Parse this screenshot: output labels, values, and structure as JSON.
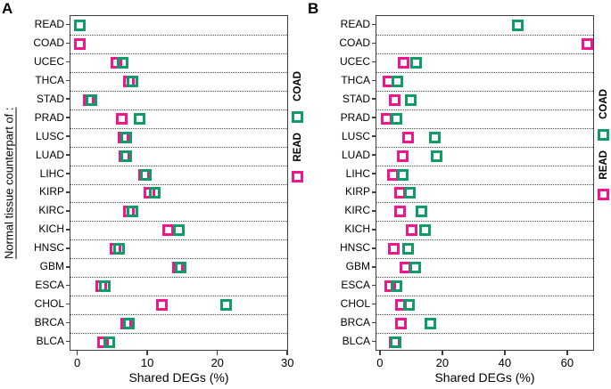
{
  "ylabel": "Normal tissue counterpart of :",
  "chart_data": {
    "type": "scatter",
    "marker": "open-square",
    "orientation": "horizontal-categories",
    "grid": "dotted-row-separators",
    "categories": [
      "READ",
      "COAD",
      "UCEC",
      "THCA",
      "STAD",
      "PRAD",
      "LUSC",
      "LUAD",
      "LIHC",
      "KIRP",
      "KIRC",
      "KICH",
      "HNSC",
      "GBM",
      "ESCA",
      "CHOL",
      "BRCA",
      "BLCA"
    ],
    "panels": [
      {
        "letter": "A",
        "xlabel": "Shared DEGs (%)",
        "xlim": [
          -1.1,
          30.1
        ],
        "xticks": [
          0,
          10,
          20,
          30
        ],
        "series": [
          {
            "name": "READ",
            "color": "#f2168d",
            "values": [
              null,
              0.2,
              5.4,
              7.2,
              1.5,
              6.2,
              6.5,
              6.6,
              9.4,
              10.2,
              7.3,
              12.9,
              5.3,
              14.2,
              3.3,
              11.9,
              6.8,
              3.6
            ]
          },
          {
            "name": "COAD",
            "color": "#0f9c66",
            "values": [
              0.3,
              null,
              6.4,
              7.8,
              1.9,
              8.8,
              6.8,
              6.9,
              9.7,
              10.9,
              7.7,
              14.4,
              5.9,
              14.6,
              3.8,
              21.1,
              7.3,
              4.4
            ]
          }
        ],
        "legend": [
          {
            "label": "COAD",
            "color": "#0f9c66"
          },
          {
            "label": "READ",
            "color": "#f2168d"
          }
        ]
      },
      {
        "letter": "B",
        "xlabel": "Shared DEGs (%)",
        "xlim": [
          -1.4,
          68.6
        ],
        "xticks": [
          0,
          20,
          40,
          60
        ],
        "series": [
          {
            "name": "READ",
            "color": "#f2168d",
            "values": [
              null,
              66.1,
              7.4,
              2.5,
              4.5,
              1.9,
              8.8,
              6.9,
              3.9,
              6.3,
              6.3,
              9.8,
              4.1,
              7.9,
              2.9,
              6.5,
              6.5,
              4.4
            ]
          },
          {
            "name": "COAD",
            "color": "#0f9c66",
            "values": [
              43.8,
              null,
              11.4,
              5.2,
              9.5,
              5.1,
              17.3,
              18.0,
              6.9,
              9.3,
              12.9,
              14.1,
              8.7,
              11.1,
              4.9,
              8.9,
              16.0,
              4.6
            ]
          }
        ],
        "legend": [
          {
            "label": "COAD",
            "color": "#0f9c66"
          },
          {
            "label": "READ",
            "color": "#f2168d"
          }
        ]
      }
    ]
  }
}
